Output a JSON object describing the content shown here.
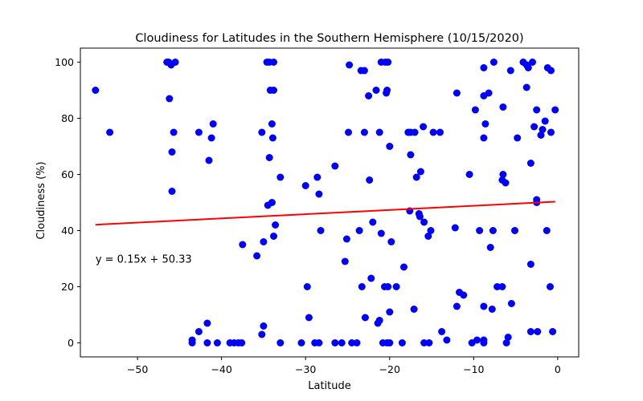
{
  "chart_data": {
    "type": "scatter",
    "title": "Cloudiness for Latitudes in the Southern Hemisphere (10/15/2020)",
    "xlabel": "Latitude",
    "ylabel": "Cloudiness (%)",
    "xlim": [
      -56.8,
      2.5
    ],
    "ylim": [
      -5,
      105
    ],
    "xticks": [
      -50,
      -40,
      -30,
      -20,
      -10,
      0
    ],
    "xtick_labels": [
      "−50",
      "−40",
      "−30",
      "−20",
      "−10",
      "0"
    ],
    "yticks": [
      0,
      20,
      40,
      60,
      80,
      100
    ],
    "ytick_labels": [
      "0",
      "20",
      "40",
      "60",
      "80",
      "100"
    ],
    "grid": false,
    "point_color": "#0000ff",
    "regression": {
      "equation": "y = 0.15x + 50.33",
      "slope": 0.15,
      "intercept": 50.33,
      "x_range": [
        -55.0,
        -0.3
      ],
      "color": "#ff0000"
    },
    "points": [
      [
        -55.0,
        90
      ],
      [
        -53.3,
        75
      ],
      [
        -46.5,
        100
      ],
      [
        -46.3,
        100
      ],
      [
        -46.0,
        99
      ],
      [
        -45.5,
        100
      ],
      [
        -46.2,
        87
      ],
      [
        -45.7,
        75
      ],
      [
        -45.9,
        68
      ],
      [
        -45.9,
        54
      ],
      [
        -42.7,
        75
      ],
      [
        -41.5,
        65
      ],
      [
        -41.2,
        73
      ],
      [
        -41.0,
        78
      ],
      [
        -43.5,
        1
      ],
      [
        -43.5,
        0
      ],
      [
        -42.7,
        4
      ],
      [
        -41.7,
        7
      ],
      [
        -41.7,
        0
      ],
      [
        -40.5,
        0
      ],
      [
        -39.0,
        0
      ],
      [
        -38.5,
        0
      ],
      [
        -38.0,
        0
      ],
      [
        -37.6,
        0
      ],
      [
        -37.5,
        35
      ],
      [
        -35.8,
        31
      ],
      [
        -35.2,
        75
      ],
      [
        -35.0,
        36
      ],
      [
        -35.0,
        6
      ],
      [
        -35.2,
        3
      ],
      [
        -34.6,
        100
      ],
      [
        -34.3,
        100
      ],
      [
        -33.8,
        100
      ],
      [
        -34.2,
        90
      ],
      [
        -33.8,
        90
      ],
      [
        -34.3,
        66
      ],
      [
        -34.5,
        49
      ],
      [
        -34.0,
        50
      ],
      [
        -34.0,
        78
      ],
      [
        -33.9,
        73
      ],
      [
        -33.6,
        42
      ],
      [
        -33.8,
        38
      ],
      [
        -33.0,
        59
      ],
      [
        -33.0,
        0
      ],
      [
        -30.5,
        0
      ],
      [
        -30.0,
        56
      ],
      [
        -29.8,
        20
      ],
      [
        -29.6,
        9
      ],
      [
        -28.9,
        0
      ],
      [
        -28.6,
        59
      ],
      [
        -28.4,
        53
      ],
      [
        -28.2,
        40
      ],
      [
        -28.4,
        0
      ],
      [
        -26.5,
        63
      ],
      [
        -26.5,
        0
      ],
      [
        -25.7,
        0
      ],
      [
        -25.3,
        29
      ],
      [
        -25.1,
        37
      ],
      [
        -24.9,
        75
      ],
      [
        -24.8,
        99
      ],
      [
        -24.5,
        0
      ],
      [
        -23.9,
        0
      ],
      [
        -23.6,
        40
      ],
      [
        -23.4,
        97
      ],
      [
        -23.0,
        97
      ],
      [
        -23.3,
        20
      ],
      [
        -23.0,
        75
      ],
      [
        -22.9,
        9
      ],
      [
        -22.5,
        88
      ],
      [
        -22.4,
        58
      ],
      [
        -22.0,
        43
      ],
      [
        -22.2,
        23
      ],
      [
        -21.6,
        90
      ],
      [
        -21.4,
        7
      ],
      [
        -21.2,
        8
      ],
      [
        -21.0,
        100
      ],
      [
        -21.2,
        75
      ],
      [
        -21.0,
        39
      ],
      [
        -20.8,
        0
      ],
      [
        -20.5,
        100
      ],
      [
        -20.2,
        100
      ],
      [
        -20.6,
        20
      ],
      [
        -20.2,
        20
      ],
      [
        -20.4,
        89
      ],
      [
        -20.3,
        90
      ],
      [
        -20.0,
        70
      ],
      [
        -20.0,
        11
      ],
      [
        -19.8,
        36
      ],
      [
        -20.0,
        0
      ],
      [
        -20.3,
        0
      ],
      [
        -19.2,
        20
      ],
      [
        -18.5,
        0
      ],
      [
        -18.3,
        27
      ],
      [
        -17.8,
        75
      ],
      [
        -17.5,
        67
      ],
      [
        -17.6,
        47
      ],
      [
        -17.5,
        75
      ],
      [
        -17.0,
        75
      ],
      [
        -17.1,
        12
      ],
      [
        -16.8,
        59
      ],
      [
        -16.5,
        46
      ],
      [
        -16.4,
        45
      ],
      [
        -16.3,
        61
      ],
      [
        -16.0,
        77
      ],
      [
        -15.9,
        43
      ],
      [
        -15.9,
        0
      ],
      [
        -15.4,
        38
      ],
      [
        -15.1,
        40
      ],
      [
        -15.3,
        0
      ],
      [
        -14.8,
        75
      ],
      [
        -14.0,
        75
      ],
      [
        -13.8,
        4
      ],
      [
        -13.2,
        1
      ],
      [
        -12.0,
        89
      ],
      [
        -12.2,
        41
      ],
      [
        -12.0,
        13
      ],
      [
        -11.7,
        18
      ],
      [
        -11.2,
        17
      ],
      [
        -10.5,
        60
      ],
      [
        -10.2,
        0
      ],
      [
        -9.8,
        83
      ],
      [
        -9.6,
        1
      ],
      [
        -9.3,
        40
      ],
      [
        -8.8,
        98
      ],
      [
        -8.8,
        88
      ],
      [
        -8.2,
        89
      ],
      [
        -8.8,
        73
      ],
      [
        -8.6,
        78
      ],
      [
        -8.8,
        13
      ],
      [
        -8.8,
        1
      ],
      [
        -8.8,
        0
      ],
      [
        -8.0,
        34
      ],
      [
        -7.8,
        12
      ],
      [
        -7.6,
        100
      ],
      [
        -7.7,
        40
      ],
      [
        -7.2,
        20
      ],
      [
        -6.6,
        20
      ],
      [
        -6.5,
        84
      ],
      [
        -6.5,
        60
      ],
      [
        -6.6,
        58
      ],
      [
        -6.2,
        57
      ],
      [
        -6.1,
        0
      ],
      [
        -5.9,
        2
      ],
      [
        -5.6,
        97
      ],
      [
        -5.5,
        14
      ],
      [
        -5.1,
        40
      ],
      [
        -4.8,
        73
      ],
      [
        -4.1,
        100
      ],
      [
        -3.7,
        99
      ],
      [
        -3.7,
        91
      ],
      [
        -3.5,
        98
      ],
      [
        -3.0,
        100
      ],
      [
        -3.2,
        64
      ],
      [
        -3.2,
        28
      ],
      [
        -3.2,
        4
      ],
      [
        -2.8,
        77
      ],
      [
        -2.5,
        83
      ],
      [
        -2.5,
        51
      ],
      [
        -2.5,
        50
      ],
      [
        -2.4,
        4
      ],
      [
        -2.0,
        74
      ],
      [
        -1.8,
        76
      ],
      [
        -1.5,
        79
      ],
      [
        -1.3,
        40
      ],
      [
        -1.2,
        98
      ],
      [
        -0.8,
        97
      ],
      [
        -0.8,
        75
      ],
      [
        -0.9,
        20
      ],
      [
        -0.6,
        4
      ],
      [
        -0.3,
        83
      ]
    ]
  }
}
